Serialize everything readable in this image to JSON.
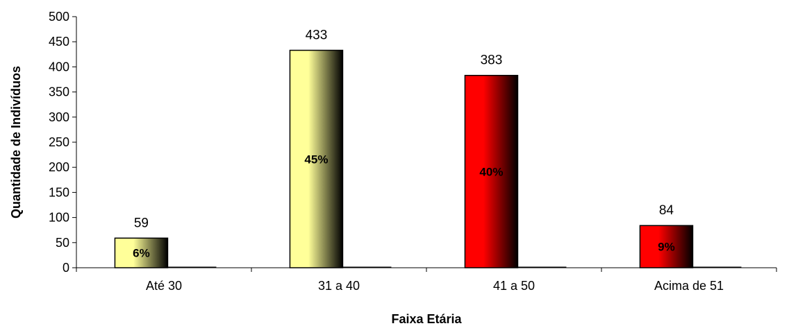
{
  "chart_data": {
    "type": "bar",
    "categories": [
      "Até 30",
      "31 a 40",
      "41 a 50",
      "Acima de 51"
    ],
    "values": [
      59,
      433,
      383,
      84
    ],
    "percent_labels": [
      "6%",
      "45%",
      "40%",
      "9%"
    ],
    "value_labels": [
      "59",
      "433",
      "383",
      "84"
    ],
    "bar_colors": [
      "#ffff99",
      "#ffff99",
      "#ff0000",
      "#ff0000"
    ],
    "ylabel": "Quantidade de Indivíduos",
    "xlabel": "Faixa Etária",
    "ylim": [
      0,
      500
    ],
    "yticks": [
      0,
      50,
      100,
      150,
      200,
      250,
      300,
      350,
      400,
      450,
      500
    ],
    "ytick_labels": [
      "0",
      "50",
      "100",
      "150",
      "200",
      "250",
      "300",
      "350",
      "400",
      "450",
      "500"
    ],
    "grid": false,
    "legend": "none"
  }
}
